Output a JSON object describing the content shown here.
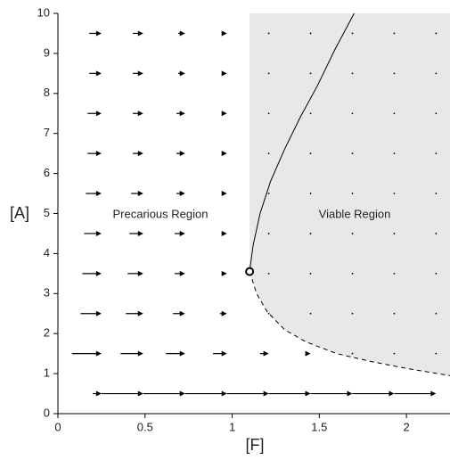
{
  "chart_data": {
    "type": "quiver",
    "xlabel": "[F]",
    "ylabel": "[A]",
    "xlim": [
      0,
      2.25
    ],
    "ylim": [
      0,
      10
    ],
    "xticks": [
      0,
      0.5,
      1,
      1.5,
      2
    ],
    "yticks": [
      0,
      1,
      2,
      3,
      4,
      5,
      6,
      7,
      8,
      9,
      10
    ],
    "annotations": [
      "Precarious Region",
      "Viable Region"
    ],
    "shade_color": "#e8e8e8",
    "arrow_color": "#000000",
    "grid_x": [
      0.25,
      0.49,
      0.73,
      0.97,
      1.21,
      1.45,
      1.69,
      1.93,
      2.17
    ],
    "grid_y": [
      0.5,
      1.5,
      2.5,
      3.5,
      4.5,
      5.5,
      6.5,
      7.5,
      8.5,
      9.5
    ],
    "u": [
      [
        0.05,
        0.24,
        0.24,
        0.24,
        0.24,
        0.24,
        0.24,
        0.24,
        0.24
      ],
      [
        0.17,
        0.13,
        0.11,
        0.08,
        0.05,
        0.02,
        0,
        0,
        0
      ],
      [
        0.12,
        0.1,
        0.07,
        0.04,
        0,
        0,
        0,
        0,
        0
      ],
      [
        0.11,
        0.09,
        0.06,
        0.03,
        0,
        0,
        0,
        0,
        0
      ],
      [
        0.1,
        0.08,
        0.06,
        0.03,
        0,
        0,
        0,
        0,
        0
      ],
      [
        0.09,
        0.07,
        0.05,
        0.02,
        0,
        0,
        0,
        0,
        0
      ],
      [
        0.08,
        0.06,
        0.05,
        0.02,
        0,
        0,
        0,
        0,
        0
      ],
      [
        0.08,
        0.06,
        0.05,
        0.02,
        0,
        0,
        0,
        0,
        0
      ],
      [
        0.07,
        0.06,
        0.04,
        0.02,
        0,
        0,
        0,
        0,
        0
      ],
      [
        0.07,
        0.06,
        0.04,
        0.02,
        0,
        0,
        0,
        0,
        0
      ]
    ],
    "curves": [
      {
        "style": "solid",
        "x": [
          1.1,
          1.12,
          1.16,
          1.22,
          1.3,
          1.39,
          1.49,
          1.59,
          1.7
        ],
        "y": [
          3.55,
          4.2,
          5.0,
          5.8,
          6.6,
          7.4,
          8.2,
          9.1,
          10
        ]
      },
      {
        "style": "dashed",
        "x": [
          1.1,
          1.14,
          1.2,
          1.3,
          1.42,
          1.6,
          1.8,
          2.0,
          2.25
        ],
        "y": [
          3.55,
          3.0,
          2.55,
          2.1,
          1.8,
          1.5,
          1.3,
          1.13,
          0.95
        ]
      }
    ]
  }
}
